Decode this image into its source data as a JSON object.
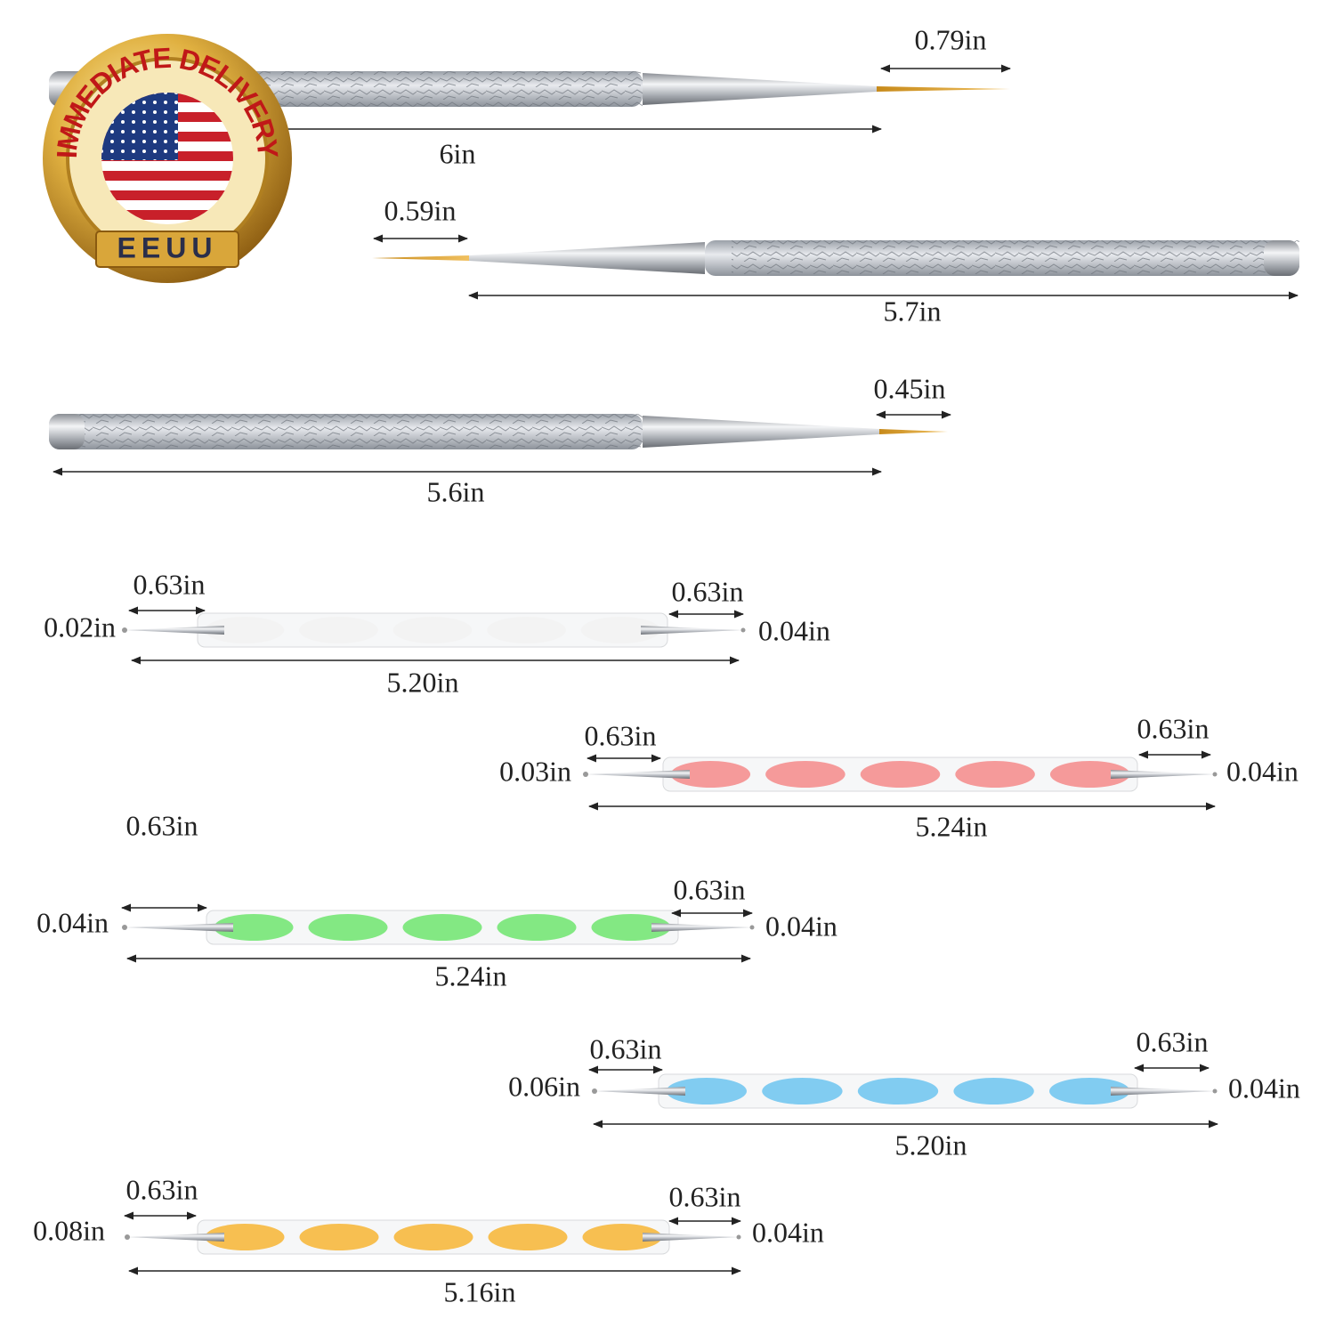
{
  "badge": {
    "top_text": "IMMEDIATE DELIVERY",
    "bottom_text": "EEUU"
  },
  "brushes": [
    {
      "tip": "0.79in",
      "length": "6in"
    },
    {
      "tip": "0.59in",
      "length": "5.7in"
    },
    {
      "tip": "0.45in",
      "length": "5.6in"
    }
  ],
  "dotting_tools": [
    {
      "left_length": "0.63in",
      "left_tip": "0.02in",
      "right_length": "0.63in",
      "right_tip": "0.04in",
      "length": "5.20in"
    },
    {
      "left_length": "0.63in",
      "left_tip": "0.03in",
      "right_length": "0.63in",
      "right_tip": "0.04in",
      "length": "5.24in"
    },
    {
      "left_length": "0.63in",
      "left_tip": "0.04in",
      "right_length": "0.63in",
      "right_tip": "0.04in",
      "length": "5.24in"
    },
    {
      "left_length": "0.63in",
      "left_tip": "0.06in",
      "right_length": "0.63in",
      "right_tip": "0.04in",
      "length": "5.20in"
    },
    {
      "left_length": "0.63in",
      "left_tip": "0.08in",
      "right_length": "0.63in",
      "right_tip": "0.04in",
      "length": "5.16in"
    }
  ]
}
